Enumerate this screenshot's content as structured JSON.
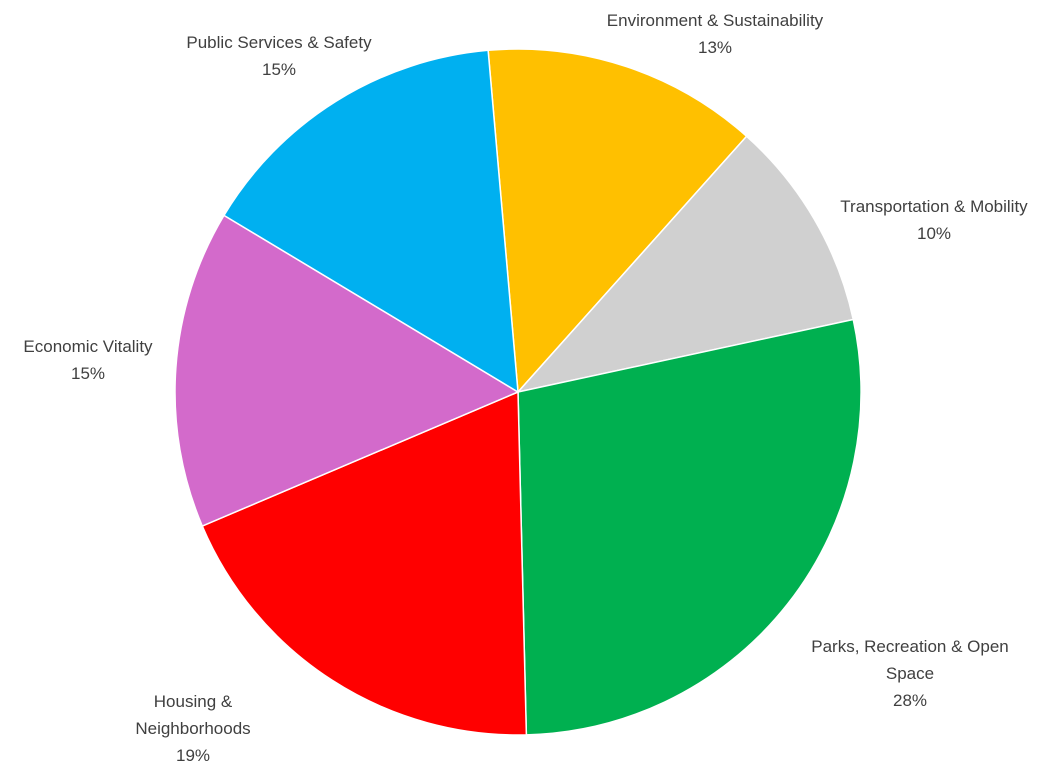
{
  "chart_data": {
    "type": "pie",
    "title": "",
    "slices": [
      {
        "label": "Environment & Sustainability",
        "value": 13,
        "value_label": "13%",
        "color": "#FFC000"
      },
      {
        "label": "Transportation & Mobility",
        "value": 10,
        "value_label": "10%",
        "color": "#D0D0D0"
      },
      {
        "label": "Parks, Recreation & Open Space",
        "value": 28,
        "value_label": "28%",
        "color": "#00B050"
      },
      {
        "label": "Housing & Neighborhoods",
        "value": 19,
        "value_label": "19%",
        "color": "#FF0000"
      },
      {
        "label": "Economic Vitality",
        "value": 15,
        "value_label": "15%",
        "color": "#D36ACB"
      },
      {
        "label": "Public Services & Safety",
        "value": 15,
        "value_label": "15%",
        "color": "#00B0F0"
      }
    ],
    "legend": "none",
    "data_labels": "outside"
  }
}
